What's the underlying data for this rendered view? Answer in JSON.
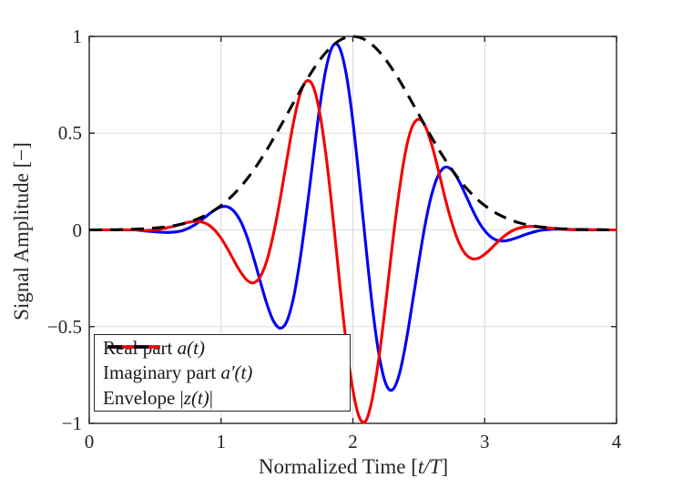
{
  "figure": {
    "background": "#ffffff"
  },
  "axes": {
    "xlabel": {
      "pre": "Normalized Time [",
      "math": "t/T",
      "post": "]"
    },
    "ylabel": "Signal Amplitude [−]",
    "xtick_labels": [
      "0",
      "1",
      "2",
      "3",
      "4"
    ],
    "ytick_labels": [
      "−1",
      "−0.5",
      "0",
      "0.5",
      "1"
    ],
    "xticks": [
      0,
      1,
      2,
      3,
      4
    ],
    "yticks": [
      -1,
      -0.5,
      0,
      0.5,
      1
    ],
    "xgrid": [
      1,
      2,
      3
    ],
    "ygrid": [
      -0.5,
      0,
      0.5
    ],
    "grid_color": "#dbdbdb",
    "axis_color": "#262626"
  },
  "legend": {
    "position": "southwest",
    "items": [
      {
        "pre": "Real part ",
        "math": "a(t)",
        "post": "",
        "color": "#0000f5",
        "style": "solid"
      },
      {
        "pre": "Imaginary part ",
        "math": "a′(t)",
        "post": "",
        "color": "#f50000",
        "style": "solid"
      },
      {
        "pre": "Envelope |",
        "math": "z(t)",
        "post": "|",
        "color": "#000000",
        "style": "dashed"
      }
    ]
  },
  "chart_data": {
    "type": "line",
    "title": "",
    "xlabel": "Normalized Time [t/T]",
    "ylabel": "Signal Amplitude [−]",
    "xlim": [
      0,
      4
    ],
    "ylim": [
      -1,
      1
    ],
    "grid": true,
    "legend_position": "southwest",
    "x": [
      0,
      0.05,
      0.1,
      0.15,
      0.2,
      0.25,
      0.3,
      0.35,
      0.4,
      0.45,
      0.5,
      0.55,
      0.6,
      0.65,
      0.7,
      0.75,
      0.8,
      0.85,
      0.9,
      0.95,
      1,
      1.05,
      1.1,
      1.15,
      1.2,
      1.25,
      1.3,
      1.35,
      1.4,
      1.45,
      1.5,
      1.55,
      1.6,
      1.65,
      1.7,
      1.75,
      1.8,
      1.85,
      1.9,
      1.95,
      2,
      2.05,
      2.1,
      2.15,
      2.2,
      2.25,
      2.3,
      2.35,
      2.4,
      2.45,
      2.5,
      2.55,
      2.6,
      2.65,
      2.7,
      2.75,
      2.8,
      2.85,
      2.9,
      2.95,
      3,
      3.05,
      3.1,
      3.15,
      3.2,
      3.25,
      3.3,
      3.35,
      3.4,
      3.45,
      3.5,
      3.55,
      3.6,
      3.65,
      3.7,
      3.75,
      3.8,
      3.85,
      3.9,
      3.95,
      4
    ],
    "series": [
      {
        "name": "Real part a(t)",
        "color": "#0000f5",
        "style": "solid",
        "values": [
          0,
          0,
          0,
          0,
          0,
          0,
          0,
          0,
          -0.004,
          -0.007,
          -0.01,
          -0.012,
          -0.013,
          -0.011,
          -0.005,
          0.008,
          0.026,
          0.05,
          0.077,
          0.102,
          0.119,
          0.119,
          0.095,
          0.042,
          -0.042,
          -0.151,
          -0.273,
          -0.388,
          -0.474,
          -0.508,
          -0.471,
          -0.349,
          -0.15,
          0.1,
          0.378,
          0.642,
          0.846,
          0.953,
          0.94,
          0.803,
          0.561,
          0.246,
          -0.094,
          -0.409,
          -0.653,
          -0.796,
          -0.827,
          -0.751,
          -0.592,
          -0.385,
          -0.166,
          0.034,
          0.189,
          0.285,
          0.324,
          0.31,
          0.259,
          0.189,
          0.114,
          0.047,
          -0.004,
          -0.038,
          -0.055,
          -0.057,
          -0.05,
          -0.039,
          -0.026,
          -0.015,
          -0.006,
          0,
          0.003,
          0.004,
          0.004,
          0.003,
          0.002,
          0.002,
          0.001,
          0.001,
          0,
          0,
          0
        ]
      },
      {
        "name": "Imaginary part a'(t)",
        "color": "#f50000",
        "style": "solid",
        "values": [
          0,
          0,
          0,
          0,
          0,
          0,
          0,
          0,
          -0.003,
          -0.002,
          0,
          0.005,
          0.012,
          0.02,
          0.03,
          0.039,
          0.044,
          0.041,
          0.028,
          0,
          -0.043,
          -0.099,
          -0.161,
          -0.22,
          -0.262,
          -0.273,
          -0.239,
          -0.153,
          -0.014,
          0.165,
          0.365,
          0.557,
          0.702,
          0.77,
          0.739,
          0.6,
          0.364,
          0.058,
          -0.275,
          -0.587,
          -0.828,
          -0.97,
          -0.985,
          -0.863,
          -0.648,
          -0.372,
          -0.076,
          0.194,
          0.406,
          0.533,
          0.572,
          0.534,
          0.435,
          0.304,
          0.164,
          0.039,
          -0.059,
          -0.121,
          -0.148,
          -0.147,
          -0.126,
          -0.095,
          -0.061,
          -0.031,
          -0.008,
          0.007,
          0.015,
          0.018,
          0.016,
          0.013,
          0.009,
          0.005,
          0.003,
          0.001,
          0,
          0,
          0,
          0,
          0,
          0,
          0
        ]
      },
      {
        "name": "Envelope |z(t)|",
        "color": "#000000",
        "style": "dashed",
        "values": [
          0,
          0,
          0.001,
          0.001,
          0.001,
          0.002,
          0.003,
          0.004,
          0.005,
          0.007,
          0.01,
          0.013,
          0.017,
          0.023,
          0.03,
          0.039,
          0.051,
          0.065,
          0.082,
          0.102,
          0.126,
          0.154,
          0.187,
          0.224,
          0.266,
          0.312,
          0.363,
          0.417,
          0.475,
          0.535,
          0.596,
          0.658,
          0.718,
          0.776,
          0.83,
          0.879,
          0.921,
          0.955,
          0.98,
          0.995,
          1,
          0.995,
          0.98,
          0.955,
          0.921,
          0.879,
          0.83,
          0.776,
          0.718,
          0.658,
          0.596,
          0.535,
          0.475,
          0.417,
          0.363,
          0.312,
          0.266,
          0.224,
          0.187,
          0.154,
          0.126,
          0.102,
          0.082,
          0.065,
          0.051,
          0.039,
          0.03,
          0.023,
          0.017,
          0.013,
          0.01,
          0.007,
          0.005,
          0.004,
          0.002,
          0.002,
          0.001,
          0.001,
          0.001,
          0,
          0
        ]
      }
    ]
  }
}
